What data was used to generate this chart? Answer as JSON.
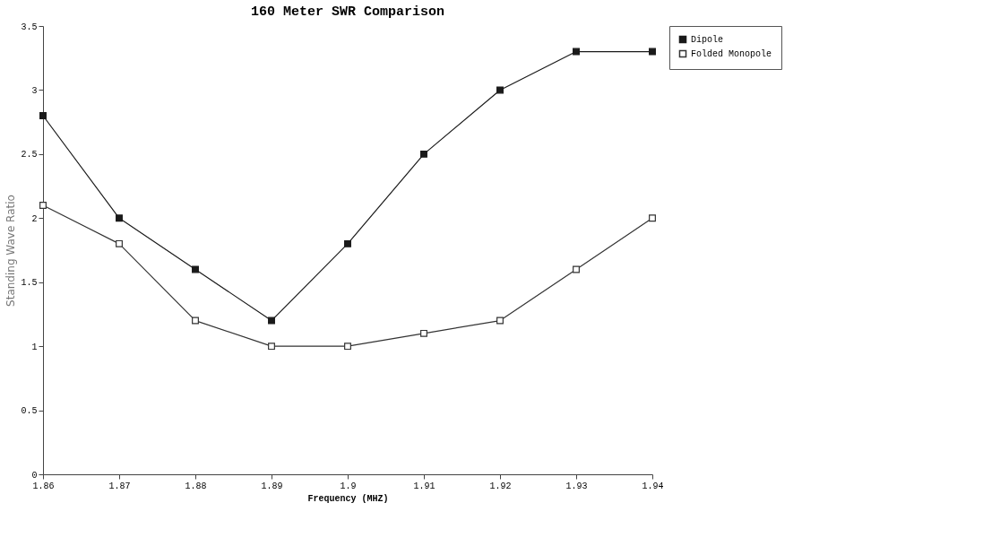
{
  "chart_data": {
    "type": "line",
    "title": "160 Meter  SWR Comparison",
    "xlabel": "Frequency (MHZ)",
    "ylabel": "Standing Wave Ratio",
    "x": [
      1.86,
      1.87,
      1.88,
      1.89,
      1.9,
      1.91,
      1.92,
      1.93,
      1.94
    ],
    "series": [
      {
        "name": "Dipole",
        "color": "#1a1a1a",
        "values": [
          2.8,
          2.0,
          1.6,
          1.2,
          1.8,
          2.5,
          3.0,
          3.3,
          3.3
        ]
      },
      {
        "name": "Folded Monopole",
        "color": "#333333",
        "values": [
          2.1,
          1.8,
          1.2,
          1.0,
          1.0,
          1.1,
          1.2,
          1.6,
          2.0
        ]
      }
    ],
    "xlim": [
      1.86,
      1.94
    ],
    "xticks": [
      1.86,
      1.87,
      1.88,
      1.89,
      1.9,
      1.91,
      1.92,
      1.93,
      1.94
    ],
    "ylim": [
      0,
      3.5
    ],
    "yticks": [
      0,
      0.5,
      1,
      1.5,
      2,
      2.5,
      3,
      3.5
    ],
    "grid": false,
    "legend": "top right",
    "marker": "square",
    "line_style": "solid"
  }
}
